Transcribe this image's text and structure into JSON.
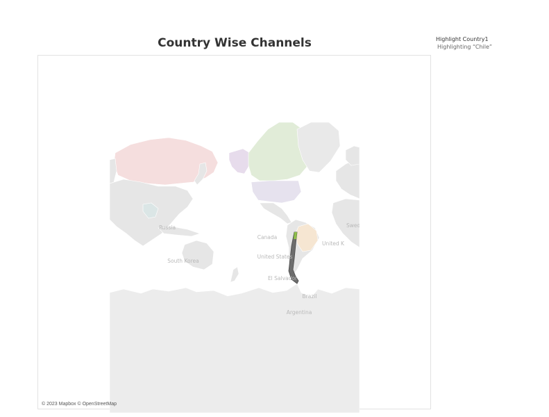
{
  "title": "Country Wise Channels",
  "highlight": {
    "title": "Highlight Country1",
    "text": "Highlighting “Chile”"
  },
  "map": {
    "attribution": "© 2023 Mapbox © OpenStreetMap",
    "highlighted_country": "Chile",
    "country_labels": {
      "russia": "Russia",
      "south_korea": "South Korea",
      "canada": "Canada",
      "united_states": "United States",
      "el_salvador": "El Salvador",
      "brazil": "Brazil",
      "argentina": "Argentina",
      "united_kingdom": "United K",
      "sweden": "Swed"
    },
    "colors": {
      "land": "#e6e6e6",
      "russia": "#f5dede",
      "canada": "#e1ecd8",
      "alaska": "#e7dcec",
      "united_states": "#e6e2ee",
      "brazil": "#f6e6d2",
      "highlight": "#6d6d6d",
      "highlight_accent": "#8fbf4a"
    }
  }
}
